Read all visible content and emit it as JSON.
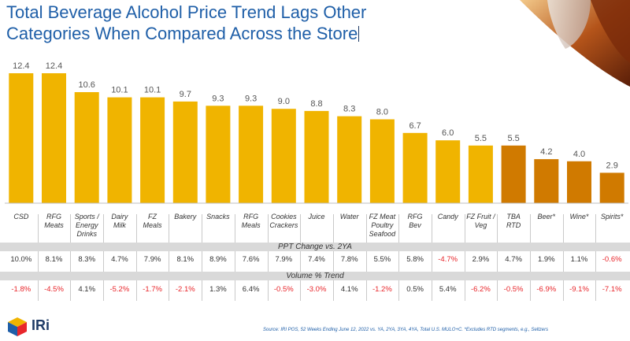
{
  "title_line1": "Total Beverage Alcohol Price Trend Lags Other",
  "title_line2": "Categories When Compared Across the Store",
  "chart_data": {
    "type": "bar",
    "categories": [
      "CSD",
      "RFG Meats",
      "Sports / Energy Drinks",
      "Dairy Milk",
      "FZ Meals",
      "Bakery",
      "Snacks",
      "RFG Meals",
      "Cookies Crackers",
      "Juice",
      "Water",
      "FZ Meat Poultry Seafood",
      "RFG Bev",
      "Candy",
      "FZ Fruit / Veg",
      "TBA RTD",
      "Beer*",
      "Wine*",
      "Spirits*"
    ],
    "category_lines": [
      [
        "CSD"
      ],
      [
        "RFG",
        "Meats"
      ],
      [
        "Sports /",
        "Energy",
        "Drinks"
      ],
      [
        "Dairy",
        "Milk"
      ],
      [
        "FZ",
        "Meals"
      ],
      [
        "Bakery"
      ],
      [
        "Snacks"
      ],
      [
        "RFG",
        "Meals"
      ],
      [
        "Cookies",
        "Crackers"
      ],
      [
        "Juice"
      ],
      [
        "Water"
      ],
      [
        "FZ Meat",
        "Poultry",
        "Seafood"
      ],
      [
        "RFG",
        "Bev"
      ],
      [
        "Candy"
      ],
      [
        "FZ Fruit /",
        "Veg"
      ],
      [
        "TBA",
        "RTD"
      ],
      [
        "Beer*"
      ],
      [
        "Wine*"
      ],
      [
        "Spirits*"
      ]
    ],
    "values": [
      12.4,
      12.4,
      10.6,
      10.1,
      10.1,
      9.7,
      9.3,
      9.3,
      9.0,
      8.8,
      8.3,
      8.0,
      6.7,
      6.0,
      5.5,
      5.5,
      4.2,
      4.0,
      2.9
    ],
    "value_labels": [
      "12.4",
      "12.4",
      "10.6",
      "10.1",
      "10.1",
      "9.7",
      "9.3",
      "9.3",
      "9.0",
      "8.8",
      "8.3",
      "8.0",
      "6.7",
      "6.0",
      "5.5",
      "5.5",
      "4.2",
      "4.0",
      "2.9"
    ],
    "bar_colors": [
      "#f0b400",
      "#f0b400",
      "#f0b400",
      "#f0b400",
      "#f0b400",
      "#f0b400",
      "#f0b400",
      "#f0b400",
      "#f0b400",
      "#f0b400",
      "#f0b400",
      "#f0b400",
      "#f0b400",
      "#f0b400",
      "#f0b400",
      "#d07a00",
      "#d07a00",
      "#d07a00",
      "#d07a00"
    ],
    "ylim": [
      0,
      13
    ],
    "grid": false,
    "xlabel": "",
    "ylabel": ""
  },
  "ppt_header": "PPT Change vs. 2YA",
  "ppt_values": [
    "10.0%",
    "8.1%",
    "8.3%",
    "4.7%",
    "7.9%",
    "8.1%",
    "8.9%",
    "7.6%",
    "7.9%",
    "7.4%",
    "7.8%",
    "5.5%",
    "5.8%",
    "-4.7%",
    "2.9%",
    "4.7%",
    "1.9%",
    "1.1%",
    "-0.6%"
  ],
  "volume_header": "Volume % Trend",
  "volume_values": [
    "-1.8%",
    "-4.5%",
    "4.1%",
    "-5.2%",
    "-1.7%",
    "-2.1%",
    "1.3%",
    "6.4%",
    "-0.5%",
    "-3.0%",
    "4.1%",
    "-1.2%",
    "0.5%",
    "5.4%",
    "-6.2%",
    "-0.5%",
    "-6.9%",
    "-9.1%",
    "-7.1%"
  ],
  "colors": {
    "bar_main": "#f0b400",
    "bar_alcohol": "#d07a00",
    "negative": "#e8262b",
    "positive": "#333333",
    "title": "#1f5fa8"
  },
  "footer": "Source: IRI POS, 52 Weeks Ending June 12, 2022 vs. YA, 2YA, 3YA, 4YA, Total U.S. MULO+C.  *Excludes RTD segments, e.g., Seltzers",
  "logo_text": "IRi",
  "logo_icon": "cube-logo-icon"
}
